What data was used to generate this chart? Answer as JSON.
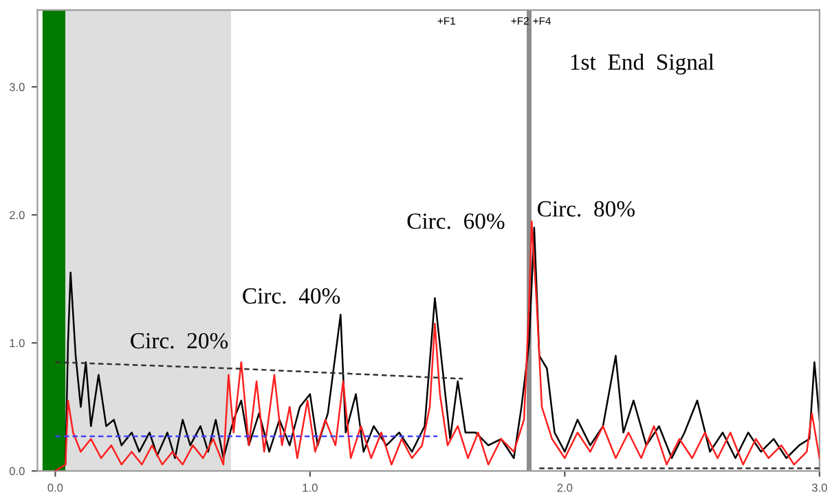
{
  "chart_data": {
    "type": "line",
    "xlim": [
      -0.07,
      3.0
    ],
    "ylim": [
      0,
      3.6
    ],
    "xticks": [
      {
        "value": 0,
        "label": "0.0"
      },
      {
        "value": 1,
        "label": "1.0"
      },
      {
        "value": 2,
        "label": "2.0"
      },
      {
        "value": 3,
        "label": "3.0"
      }
    ],
    "yticks": [
      {
        "value": 0,
        "label": "0.0"
      },
      {
        "value": 1,
        "label": "1.0"
      },
      {
        "value": 2,
        "label": "2.0"
      },
      {
        "value": 3,
        "label": "3.0"
      }
    ],
    "grid": false,
    "legend": false,
    "bands": [
      {
        "axis": "x",
        "from": -0.05,
        "to": 0.04,
        "color": "#007a00"
      },
      {
        "axis": "x",
        "from": 0.04,
        "to": 0.69,
        "color": "#dedede"
      }
    ],
    "ref_lines": [
      {
        "axis": "x",
        "value": 1.86,
        "color": "#8c8c8c"
      }
    ],
    "series": [
      {
        "color": "#000000",
        "line_style": "solid",
        "x": [
          0.0,
          0.04,
          0.05,
          0.06,
          0.08,
          0.1,
          0.12,
          0.14,
          0.17,
          0.2,
          0.23,
          0.26,
          0.3,
          0.33,
          0.37,
          0.4,
          0.44,
          0.47,
          0.5,
          0.53,
          0.57,
          0.6,
          0.63,
          0.66,
          0.7,
          0.73,
          0.76,
          0.8,
          0.84,
          0.88,
          0.92,
          0.96,
          1.0,
          1.03,
          1.07,
          1.12,
          1.14,
          1.18,
          1.21,
          1.25,
          1.3,
          1.35,
          1.4,
          1.45,
          1.49,
          1.52,
          1.55,
          1.58,
          1.61,
          1.65,
          1.7,
          1.75,
          1.8,
          1.83,
          1.86,
          1.88,
          1.9,
          1.93,
          1.96,
          2.0,
          2.05,
          2.1,
          2.15,
          2.2,
          2.23,
          2.27,
          2.32,
          2.37,
          2.42,
          2.47,
          2.52,
          2.57,
          2.62,
          2.67,
          2.72,
          2.77,
          2.82,
          2.87,
          2.92,
          2.96,
          2.98,
          3.0
        ],
        "values": [
          0.0,
          0.05,
          1.0,
          1.55,
          0.9,
          0.5,
          0.85,
          0.35,
          0.75,
          0.35,
          0.4,
          0.2,
          0.3,
          0.15,
          0.3,
          0.12,
          0.3,
          0.1,
          0.4,
          0.2,
          0.35,
          0.15,
          0.4,
          0.1,
          0.4,
          0.55,
          0.2,
          0.45,
          0.15,
          0.4,
          0.2,
          0.5,
          0.6,
          0.2,
          0.45,
          1.22,
          0.3,
          0.6,
          0.15,
          0.35,
          0.2,
          0.3,
          0.15,
          0.35,
          1.35,
          0.8,
          0.25,
          0.7,
          0.3,
          0.3,
          0.2,
          0.25,
          0.1,
          0.5,
          1.0,
          1.9,
          0.9,
          0.8,
          0.3,
          0.15,
          0.4,
          0.2,
          0.35,
          0.9,
          0.3,
          0.55,
          0.2,
          0.35,
          0.1,
          0.3,
          0.55,
          0.15,
          0.3,
          0.1,
          0.3,
          0.15,
          0.25,
          0.1,
          0.2,
          0.25,
          0.85,
          0.4
        ]
      },
      {
        "color": "#ff2020",
        "line_style": "solid",
        "x": [
          0.0,
          0.04,
          0.05,
          0.07,
          0.1,
          0.14,
          0.18,
          0.22,
          0.26,
          0.3,
          0.34,
          0.38,
          0.42,
          0.46,
          0.5,
          0.54,
          0.58,
          0.62,
          0.66,
          0.68,
          0.7,
          0.73,
          0.76,
          0.79,
          0.82,
          0.86,
          0.89,
          0.92,
          0.95,
          0.99,
          1.02,
          1.06,
          1.1,
          1.13,
          1.16,
          1.2,
          1.24,
          1.28,
          1.32,
          1.36,
          1.4,
          1.44,
          1.47,
          1.49,
          1.51,
          1.54,
          1.58,
          1.62,
          1.66,
          1.7,
          1.75,
          1.8,
          1.84,
          1.86,
          1.87,
          1.89,
          1.91,
          1.95,
          2.0,
          2.05,
          2.1,
          2.15,
          2.2,
          2.25,
          2.3,
          2.35,
          2.4,
          2.45,
          2.5,
          2.55,
          2.6,
          2.65,
          2.7,
          2.75,
          2.8,
          2.85,
          2.9,
          2.95,
          2.97,
          3.0
        ],
        "values": [
          0.0,
          0.05,
          0.55,
          0.3,
          0.15,
          0.25,
          0.1,
          0.2,
          0.05,
          0.15,
          0.05,
          0.2,
          0.05,
          0.15,
          0.05,
          0.2,
          0.1,
          0.25,
          0.05,
          0.75,
          0.3,
          0.85,
          0.2,
          0.7,
          0.15,
          0.75,
          0.2,
          0.5,
          0.1,
          0.55,
          0.15,
          0.4,
          0.2,
          0.7,
          0.1,
          0.35,
          0.1,
          0.3,
          0.05,
          0.25,
          0.1,
          0.2,
          0.5,
          1.15,
          0.6,
          0.2,
          0.35,
          0.1,
          0.3,
          0.05,
          0.25,
          0.15,
          0.4,
          1.3,
          1.95,
          1.3,
          0.5,
          0.25,
          0.1,
          0.3,
          0.15,
          0.35,
          0.1,
          0.3,
          0.1,
          0.35,
          0.05,
          0.25,
          0.1,
          0.3,
          0.1,
          0.3,
          0.05,
          0.25,
          0.1,
          0.2,
          0.05,
          0.15,
          0.45,
          0.1
        ]
      },
      {
        "color": "#333333",
        "line_style": "dashed",
        "x": [
          0.0,
          0.7,
          1.6
        ],
        "values": [
          0.85,
          0.8,
          0.72
        ]
      },
      {
        "color": "#4040ff",
        "line_style": "dashed",
        "x": [
          0.0,
          1.5
        ],
        "values": [
          0.27,
          0.27
        ]
      },
      {
        "color": "#333333",
        "line_style": "dashed",
        "x": [
          1.9,
          3.0
        ],
        "values": [
          0.02,
          0.02
        ]
      }
    ],
    "annotations": [
      {
        "text": "Circ.  20%",
        "x": 0.68,
        "y": 0.87
      },
      {
        "text": "Circ.  40%",
        "x": 1.12,
        "y": 1.22
      },
      "Circ.  60%",
      {
        "text": "Circ.  80%",
        "x": 1.89,
        "y": 1.9
      },
      "+F1",
      "+F2",
      "+F4",
      "1st  End  Signal"
    ]
  }
}
